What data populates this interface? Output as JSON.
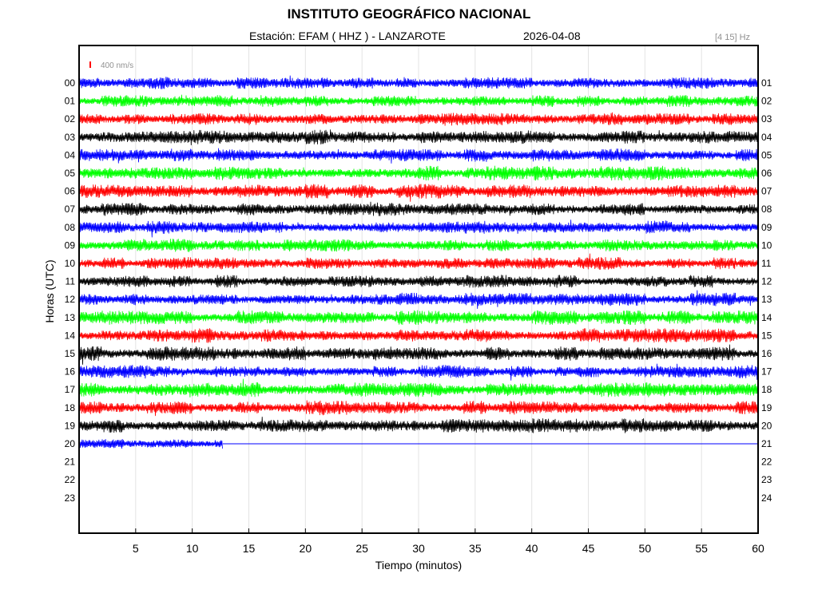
{
  "header": {
    "title": "INSTITUTO GEOGRÁFICO NACIONAL",
    "station": "Estación:  EFAM ( HHZ ) - LANZAROTE",
    "date": "2026-04-08",
    "frequency_band": "[4 15] Hz"
  },
  "scale_bar": {
    "label": "400 nm/s",
    "color": "#ff0000"
  },
  "chart_data": {
    "type": "line",
    "subtype": "helicorder",
    "title": "INSTITUTO GEOGRÁFICO NACIONAL",
    "xlabel": "Tiempo (minutos)",
    "ylabel": "Horas (UTC)",
    "xlim": [
      0,
      60
    ],
    "x_ticks": [
      5,
      10,
      15,
      20,
      25,
      30,
      35,
      40,
      45,
      50,
      55,
      60
    ],
    "left_hour_labels": [
      "00",
      "01",
      "02",
      "03",
      "04",
      "05",
      "06",
      "07",
      "08",
      "09",
      "10",
      "11",
      "12",
      "13",
      "14",
      "15",
      "16",
      "17",
      "18",
      "19",
      "20",
      "21",
      "22",
      "23"
    ],
    "right_hour_labels": [
      "01",
      "02",
      "03",
      "04",
      "05",
      "06",
      "07",
      "08",
      "09",
      "10",
      "11",
      "12",
      "13",
      "14",
      "15",
      "16",
      "17",
      "18",
      "19",
      "20",
      "21",
      "22",
      "23",
      "24"
    ],
    "color_cycle": [
      "#0000ff",
      "#00ff00",
      "#ff0000",
      "#000000"
    ],
    "grid": true,
    "traces": [
      {
        "hour": "00",
        "end_minute": 60,
        "amplitude": 0.9
      },
      {
        "hour": "01",
        "end_minute": 60,
        "amplitude": 0.9
      },
      {
        "hour": "02",
        "end_minute": 60,
        "amplitude": 1.0
      },
      {
        "hour": "03",
        "end_minute": 60,
        "amplitude": 1.1
      },
      {
        "hour": "04",
        "end_minute": 60,
        "amplitude": 1.0
      },
      {
        "hour": "05",
        "end_minute": 60,
        "amplitude": 1.1
      },
      {
        "hour": "06",
        "end_minute": 60,
        "amplitude": 1.1
      },
      {
        "hour": "07",
        "end_minute": 60,
        "amplitude": 1.0
      },
      {
        "hour": "08",
        "end_minute": 60,
        "amplitude": 1.0
      },
      {
        "hour": "09",
        "end_minute": 60,
        "amplitude": 1.0
      },
      {
        "hour": "10",
        "end_minute": 60,
        "amplitude": 1.0
      },
      {
        "hour": "11",
        "end_minute": 60,
        "amplitude": 1.0
      },
      {
        "hour": "12",
        "end_minute": 60,
        "amplitude": 1.0
      },
      {
        "hour": "13",
        "end_minute": 60,
        "amplitude": 1.1
      },
      {
        "hour": "14",
        "end_minute": 60,
        "amplitude": 1.1
      },
      {
        "hour": "15",
        "end_minute": 60,
        "amplitude": 1.1
      },
      {
        "hour": "16",
        "end_minute": 60,
        "amplitude": 1.0
      },
      {
        "hour": "17",
        "end_minute": 60,
        "amplitude": 1.1
      },
      {
        "hour": "18",
        "end_minute": 60,
        "amplitude": 1.1
      },
      {
        "hour": "19",
        "end_minute": 60,
        "amplitude": 1.1
      },
      {
        "hour": "20",
        "end_minute": 12.7,
        "amplitude": 0.8
      }
    ]
  }
}
